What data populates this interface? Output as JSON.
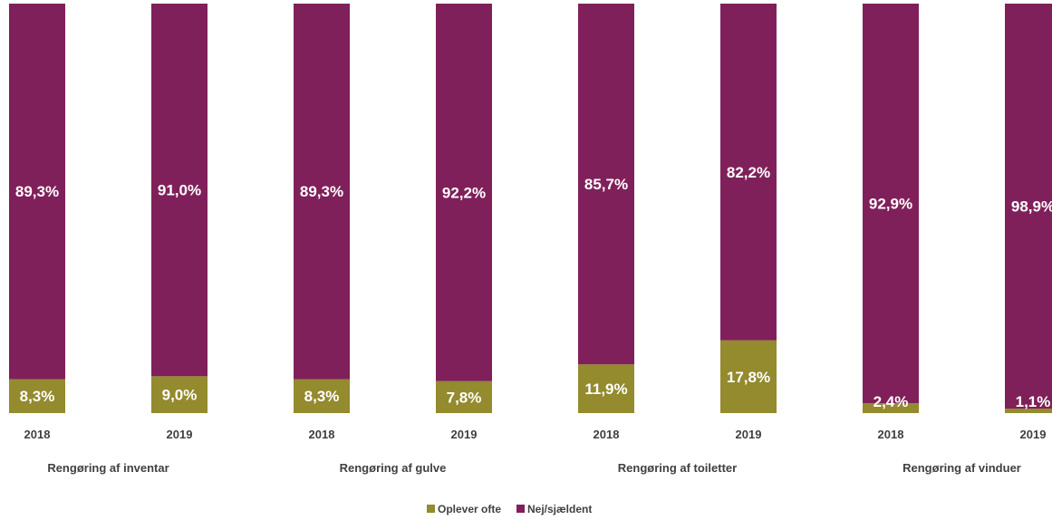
{
  "chart_data": {
    "type": "bar",
    "stacked": true,
    "percent_stacked": true,
    "title": "",
    "groups": [
      "Rengøring af inventar",
      "Rengøring af gulve",
      "Rengøring af toiletter",
      "Rengøring af vinduer"
    ],
    "categories": [
      "2018",
      "2019",
      "2018",
      "2019",
      "2018",
      "2019",
      "2018",
      "2019"
    ],
    "series": [
      {
        "name": "Oplever ofte",
        "color": "#948a2e",
        "values": [
          8.3,
          9.0,
          8.3,
          7.8,
          11.9,
          17.8,
          2.4,
          1.1
        ],
        "labels": [
          "8,3%",
          "9,0%",
          "8,3%",
          "7,8%",
          "11,9%",
          "17,8%",
          "2,4%",
          "1,1%"
        ]
      },
      {
        "name": "Nej/sjældent",
        "color": "#80205a",
        "values": [
          89.3,
          91.0,
          89.3,
          92.2,
          85.7,
          82.2,
          92.9,
          98.9
        ],
        "labels": [
          "89,3%",
          "91,0%",
          "89,3%",
          "92,2%",
          "85,7%",
          "82,2%",
          "92,9%",
          "98,9%"
        ]
      }
    ],
    "ylim": [
      0,
      100
    ],
    "grid": false,
    "legend": "bottom-center"
  }
}
